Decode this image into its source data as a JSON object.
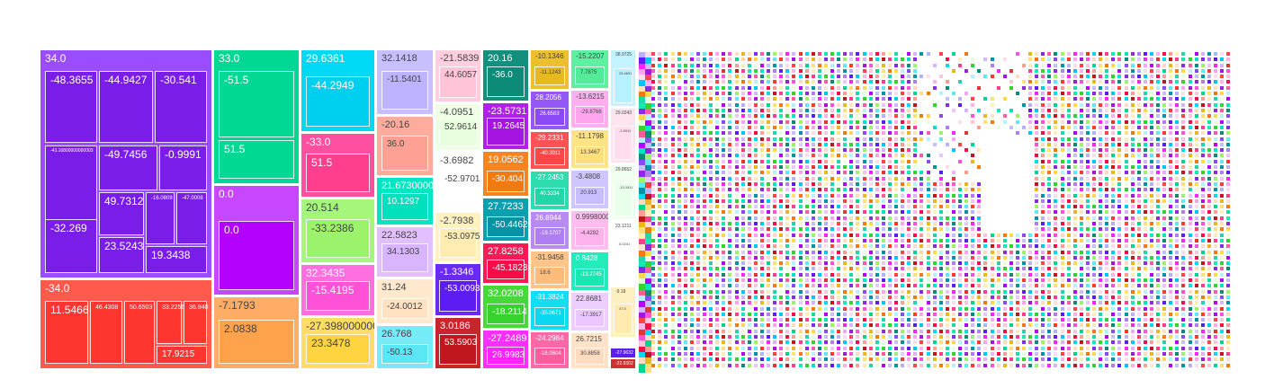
{
  "chart_data": {
    "type": "treemap",
    "title": "",
    "colors": [
      "#8a2be2",
      "#ff3b30",
      "#00d68f",
      "#b400ff",
      "#00c8f0",
      "#ff3f8e",
      "#9cf36b",
      "#ff52d9",
      "#ffd84d",
      "#b9b0ff",
      "#ff9f94",
      "#00e6c3",
      "#d9b3ff",
      "#ffe3c9",
      "#5fe8f5",
      "#ffc6d9",
      "#e9ffe0",
      "#5d1df2",
      "#c0171e",
      "#0c8c78",
      "#a514e0",
      "#f27a10",
      "#0094a6",
      "#f70d4a",
      "#38d22e",
      "#ff24ff",
      "#e7b81f",
      "#8b4af5",
      "#ff4545",
      "#22d6a8",
      "#b07ef2",
      "#09d8f0",
      "#ff5c9e",
      "#ffa4ef",
      "#ffe07a",
      "#c8beff",
      "#ffb2ec",
      "#18e8b4",
      "#ebc6ff",
      "#ffdcc0",
      "#b6f1ff",
      "#ffddec",
      "#ffeeb8",
      "#8a2be2",
      "#e03636"
    ],
    "groups": [
      {
        "label": "34.0",
        "color": "#9a4cff",
        "children": [
          {
            "label": "-48.3655",
            "color": "#7b1de8"
          },
          {
            "label": "-44.9427",
            "color": "#7b1de8"
          },
          {
            "label": "-30.541",
            "color": "#7b1de8"
          },
          {
            "label": "-43.16800000000003",
            "color": "#7b1de8"
          },
          {
            "label": "-49.7456",
            "color": "#7b1de8"
          },
          {
            "label": "-0.9991",
            "color": "#7b1de8"
          },
          {
            "label": "49.7312",
            "color": "#7b1de8"
          },
          {
            "label": "-16.0809",
            "color": "#7b1de8"
          },
          {
            "label": "-47.0008",
            "color": "#7b1de8"
          },
          {
            "label": "-32.269",
            "color": "#7b1de8"
          },
          {
            "label": "23.5243",
            "color": "#7b1de8"
          },
          {
            "label": "19.3438",
            "color": "#7b1de8"
          }
        ]
      },
      {
        "label": "-34.0",
        "color": "#ff5a4c",
        "children": [
          {
            "label": "11.5466",
            "color": "#ff3530"
          },
          {
            "label": "46.4308",
            "color": "#ff3530"
          },
          {
            "label": "50.6503",
            "color": "#ff3530"
          },
          {
            "label": "33.2256",
            "color": "#ff3530"
          },
          {
            "label": "36.940",
            "color": "#ff3530"
          },
          {
            "label": "17.9215",
            "color": "#ff3530"
          }
        ]
      },
      {
        "label": "33.0",
        "color": "#00d893",
        "children": [
          {
            "label": "-51.5",
            "color": "#00d893"
          },
          {
            "label": "51.5",
            "color": "#00d893"
          }
        ]
      },
      {
        "label": "0.0",
        "color": "#c746ff",
        "children": [
          {
            "label": "0.0",
            "color": "#b400ff"
          }
        ]
      },
      {
        "label": "-7.1793",
        "color": "#ffad66",
        "children": [
          {
            "label": "2.0838",
            "color": "#ffa24c"
          }
        ]
      },
      {
        "label": "29.6361",
        "color": "#00d9f5",
        "children": [
          {
            "label": "-44.2949",
            "color": "#00d0f0"
          }
        ]
      },
      {
        "label": "-33.0",
        "color": "#ff4fa0",
        "children": [
          {
            "label": "51.5",
            "color": "#ff3f8e"
          }
        ]
      },
      {
        "label": "20.514",
        "color": "#a4f77a",
        "children": [
          {
            "label": "-33.2386",
            "color": "#9cf36b"
          }
        ]
      },
      {
        "label": "32.3435",
        "color": "#ff6fe0",
        "children": [
          {
            "label": "-15.4195",
            "color": "#ff52d9"
          }
        ]
      },
      {
        "label": "-27.398000000000003",
        "color": "#ffdc66",
        "children": [
          {
            "label": "23.3478",
            "color": "#ffd440"
          }
        ]
      },
      {
        "label": "32.1418",
        "color": "#c7bfff",
        "children": [
          {
            "label": "-11.5401",
            "color": "#bdb3ff"
          }
        ]
      },
      {
        "label": "-20.16",
        "color": "#ffac9f",
        "children": [
          {
            "label": "36.0",
            "color": "#ffa094"
          }
        ]
      },
      {
        "label": "21.673000000000005",
        "color": "#00e6c3",
        "children": [
          {
            "label": "10.1297",
            "color": "#00e0bc"
          }
        ]
      },
      {
        "label": "22.5823",
        "color": "#e2c0ff",
        "children": [
          {
            "label": "34.1303",
            "color": "#dab5ff"
          }
        ]
      },
      {
        "label": "31.24",
        "color": "#ffe8cc",
        "children": [
          {
            "label": "-24.0012",
            "color": "#ffe2c2"
          }
        ]
      },
      {
        "label": "26.768",
        "color": "#74ebf7",
        "children": [
          {
            "label": "-50.13",
            "color": "#5ae6f5"
          }
        ]
      },
      {
        "label": "-21.5839",
        "color": "#ffcfdf",
        "children": [
          {
            "label": "44.6057",
            "color": "#ffc4d7"
          }
        ]
      },
      {
        "label": "-4.0951",
        "color": "#eeffe6",
        "children": [
          {
            "label": "52.9614",
            "color": "#e8ffde"
          }
        ]
      },
      {
        "label": "-3.6982",
        "color": "#ffffff",
        "children": [
          {
            "label": "-52.9701",
            "color": "#ffffff"
          }
        ]
      },
      {
        "label": "-2.7938",
        "color": "#fff1c2",
        "children": [
          {
            "label": "-53.0975",
            "color": "#ffecb3"
          }
        ]
      },
      {
        "label": "-1.3346",
        "color": "#6a2af5",
        "children": [
          {
            "label": "-53.0093",
            "color": "#5d1df2"
          }
        ]
      },
      {
        "label": "3.0186",
        "color": "#c8262c",
        "children": [
          {
            "label": "53.5903",
            "color": "#c0171e"
          }
        ]
      },
      {
        "label": "20.16",
        "color": "#148f7d",
        "children": [
          {
            "label": "-36.0",
            "color": "#0c8c78"
          }
        ]
      },
      {
        "label": "-23.5731",
        "color": "#b020e8",
        "children": [
          {
            "label": "19.2645",
            "color": "#a514e0"
          }
        ]
      },
      {
        "label": "19.0562",
        "color": "#f58522",
        "children": [
          {
            "label": "-30.404",
            "color": "#f27a10"
          }
        ]
      },
      {
        "label": "27.7233",
        "color": "#0aa0b0",
        "children": [
          {
            "label": "-50.4462",
            "color": "#0094a6"
          }
        ]
      },
      {
        "label": "27.8258",
        "color": "#fa1a55",
        "children": [
          {
            "label": "-45.1823",
            "color": "#f70d4a"
          }
        ]
      },
      {
        "label": "32.0208",
        "color": "#48d83c",
        "children": [
          {
            "label": "-18.2114",
            "color": "#38d22e"
          }
        ]
      },
      {
        "label": "-27.2489",
        "color": "#ff30ff",
        "children": [
          {
            "label": "26.9983",
            "color": "#ff24ff"
          }
        ]
      },
      {
        "label": "-10.1346",
        "color": "#ecbf2c",
        "children": [
          {
            "label": "-11.1243",
            "color": "#e7b81f"
          }
        ]
      },
      {
        "label": "28.2056",
        "color": "#9458f7",
        "children": [
          {
            "label": "26.6583",
            "color": "#8b4af5"
          }
        ]
      },
      {
        "label": "-29.2331",
        "color": "#ff5353",
        "children": [
          {
            "label": "-40.3911",
            "color": "#ff4545"
          }
        ]
      },
      {
        "label": "-27.2453",
        "color": "#2edcae",
        "children": [
          {
            "label": "40.3334",
            "color": "#22d6a8"
          }
        ]
      },
      {
        "label": "26.8944",
        "color": "#b88af4",
        "children": [
          {
            "label": "-19.1707",
            "color": "#b07ef2"
          }
        ]
      },
      {
        "label": "-31.9458",
        "color": "#ffc48a",
        "children": [
          {
            "label": "18.6",
            "color": "#ffbb7a"
          }
        ]
      },
      {
        "label": "-31.3824",
        "color": "#14dcf2",
        "children": [
          {
            "label": "-35.0671",
            "color": "#09d8f0"
          }
        ]
      },
      {
        "label": "-24.2984",
        "color": "#ff68a6",
        "children": [
          {
            "label": "-16.0604",
            "color": "#ff5c9e"
          }
        ]
      },
      {
        "label": "-15.2207",
        "color": "#5cf0a0",
        "children": [
          {
            "label": "7.7875",
            "color": "#50ec98"
          }
        ]
      },
      {
        "label": "-13.6215",
        "color": "#ffaeef",
        "children": [
          {
            "label": "-29.8766",
            "color": "#ffa4ef"
          }
        ]
      },
      {
        "label": "-11.1798",
        "color": "#ffe385",
        "children": [
          {
            "label": "13.3467",
            "color": "#ffe07a"
          }
        ]
      },
      {
        "label": "-3.4808",
        "color": "#cfc6ff",
        "children": [
          {
            "label": "20.913",
            "color": "#c8beff"
          }
        ]
      },
      {
        "label": "0.9998000000000022",
        "color": "#ffbcee",
        "children": [
          {
            "label": "-4.4292",
            "color": "#ffb2ec"
          }
        ]
      },
      {
        "label": "0.8428",
        "color": "#22ecba",
        "children": [
          {
            "label": "-13.2745",
            "color": "#18e8b4"
          }
        ]
      },
      {
        "label": "22.8681",
        "color": "#eecdff",
        "children": [
          {
            "label": "-17.3917",
            "color": "#ebc6ff"
          }
        ]
      },
      {
        "label": "26.7215",
        "color": "#ffe2c8",
        "children": [
          {
            "label": "30.8858",
            "color": "#ffdcc0"
          }
        ]
      },
      {
        "label": "38.9725",
        "color": "#c2f4ff",
        "children": [
          {
            "label": "25.4651",
            "color": "#b6f1ff"
          }
        ]
      },
      {
        "label": "29.0243",
        "color": "#ffe3ef",
        "children": [
          {
            "label": "-2.9911",
            "color": "#ffddec"
          }
        ]
      },
      {
        "label": "29.8652",
        "color": "#f0fff0",
        "children": [
          {
            "label": "-13.1511",
            "color": "#eaffea"
          }
        ]
      },
      {
        "label": "23.1211",
        "color": "#ffffff",
        "children": [
          {
            "label": "0.0241",
            "color": "#ffffff"
          }
        ]
      },
      {
        "label": "-9.18",
        "color": "#fff0c2",
        "children": [
          {
            "label": "47.5",
            "color": "#ffeab0"
          }
        ]
      },
      {
        "label": "-27.9632",
        "color": "#5d1df2",
        "children": []
      },
      {
        "label": "-22.9302",
        "color": "#d03030",
        "children": []
      }
    ]
  }
}
